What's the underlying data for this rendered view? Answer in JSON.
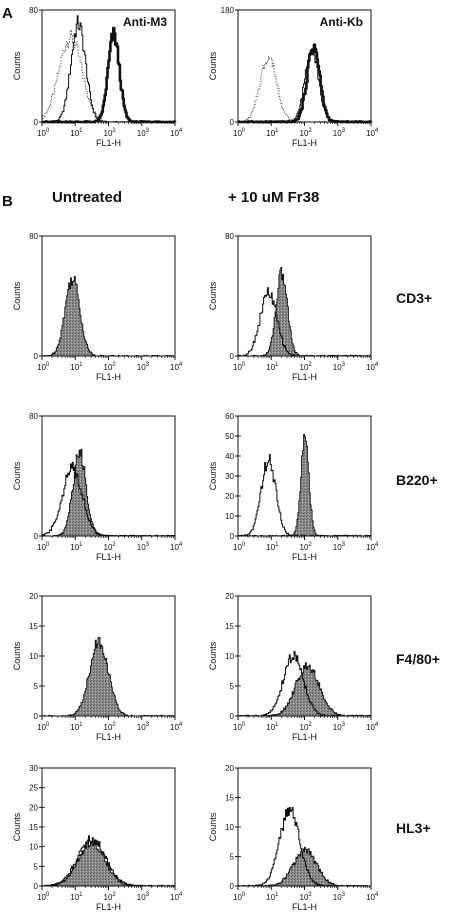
{
  "panel_labels": {
    "a": "A",
    "b": "B"
  },
  "column_headings": {
    "untreated": "Untreated",
    "treated": "+ 10 uM Fr38"
  },
  "row_labels": [
    "CD3+",
    "B220+",
    "F4/80+",
    "HL3+"
  ],
  "colors": {
    "ink": "#111111",
    "filled_histogram": "#8a8a8a",
    "background": "#ffffff"
  },
  "chart_data": [
    {
      "id": "A-left",
      "type": "area",
      "title": "Anti-M3",
      "xlabel": "FL1-H",
      "ylabel": "Counts",
      "x_scale": "log",
      "xlim": [
        1,
        10000
      ],
      "ylim": [
        0,
        80
      ],
      "yticks": [
        0,
        80
      ],
      "series": [
        {
          "style": "dotted",
          "values": [
            {
              "center": 7,
              "width": 0.35,
              "height": 60
            }
          ]
        },
        {
          "style": "thin-line",
          "values": [
            {
              "center": 12,
              "width": 0.22,
              "height": 70
            }
          ]
        },
        {
          "style": "bold-line",
          "values": [
            {
              "center": 140,
              "width": 0.17,
              "height": 62
            }
          ]
        }
      ]
    },
    {
      "id": "A-right",
      "type": "area",
      "title": "Anti-Kb",
      "xlabel": "FL1-H",
      "ylabel": "Counts",
      "x_scale": "log",
      "xlim": [
        1,
        10000
      ],
      "ylim": [
        0,
        180
      ],
      "yticks": [
        0,
        180
      ],
      "series": [
        {
          "style": "dotted",
          "values": [
            {
              "center": 8,
              "width": 0.25,
              "height": 105
            }
          ]
        },
        {
          "style": "thin-line",
          "values": [
            {
              "center": 160,
              "width": 0.2,
              "height": 120
            }
          ]
        },
        {
          "style": "bold-line",
          "values": [
            {
              "center": 180,
              "width": 0.19,
              "height": 122
            }
          ]
        }
      ]
    },
    {
      "id": "CD3-untreated",
      "type": "area",
      "xlabel": "FL1-H",
      "ylabel": "Counts",
      "x_scale": "log",
      "xlim": [
        1,
        10000
      ],
      "ylim": [
        0,
        80
      ],
      "yticks": [
        0,
        80
      ],
      "series": [
        {
          "style": "filled",
          "values": [
            {
              "center": 8,
              "width": 0.22,
              "height": 52
            }
          ]
        }
      ]
    },
    {
      "id": "CD3-treated",
      "type": "area",
      "xlabel": "FL1-H",
      "ylabel": "Counts",
      "x_scale": "log",
      "xlim": [
        1,
        10000
      ],
      "ylim": [
        0,
        80
      ],
      "yticks": [
        0,
        80
      ],
      "series": [
        {
          "style": "filled",
          "values": [
            {
              "center": 20,
              "width": 0.17,
              "height": 55
            }
          ]
        },
        {
          "style": "outline",
          "values": [
            {
              "center": 8,
              "width": 0.25,
              "height": 42
            }
          ]
        }
      ]
    },
    {
      "id": "B220-untreated",
      "type": "area",
      "xlabel": "FL1-H",
      "ylabel": "Counts",
      "x_scale": "log",
      "xlim": [
        1,
        10000
      ],
      "ylim": [
        0,
        80
      ],
      "yticks": [
        0,
        80
      ],
      "series": [
        {
          "style": "filled",
          "values": [
            {
              "center": 13,
              "width": 0.2,
              "height": 55
            }
          ]
        },
        {
          "style": "outline",
          "values": [
            {
              "center": 8,
              "width": 0.3,
              "height": 45
            }
          ]
        }
      ]
    },
    {
      "id": "B220-treated",
      "type": "area",
      "xlabel": "FL1-H",
      "ylabel": "Counts",
      "x_scale": "log",
      "xlim": [
        1,
        10000
      ],
      "ylim": [
        0,
        60
      ],
      "yticks": [
        0,
        10,
        20,
        30,
        40,
        50,
        60
      ],
      "series": [
        {
          "style": "filled",
          "values": [
            {
              "center": 100,
              "width": 0.12,
              "height": 48
            }
          ]
        },
        {
          "style": "outline",
          "values": [
            {
              "center": 8,
              "width": 0.22,
              "height": 38
            }
          ]
        }
      ]
    },
    {
      "id": "F480-untreated",
      "type": "area",
      "xlabel": "FL1-H",
      "ylabel": "Counts",
      "x_scale": "log",
      "xlim": [
        1,
        10000
      ],
      "ylim": [
        0,
        20
      ],
      "yticks": [
        0,
        5,
        10,
        15,
        20
      ],
      "series": [
        {
          "style": "filled",
          "values": [
            {
              "center": 50,
              "width": 0.28,
              "height": 12.5
            }
          ]
        }
      ]
    },
    {
      "id": "F480-treated",
      "type": "area",
      "xlabel": "FL1-H",
      "ylabel": "Counts",
      "x_scale": "log",
      "xlim": [
        1,
        10000
      ],
      "ylim": [
        0,
        20
      ],
      "yticks": [
        0,
        5,
        10,
        15,
        20
      ],
      "series": [
        {
          "style": "filled",
          "values": [
            {
              "center": 120,
              "width": 0.35,
              "height": 8.5
            }
          ]
        },
        {
          "style": "outline",
          "values": [
            {
              "center": 45,
              "width": 0.3,
              "height": 10
            }
          ]
        }
      ]
    },
    {
      "id": "HL3-untreated",
      "type": "area",
      "xlabel": "FL1-H",
      "ylabel": "Counts",
      "x_scale": "log",
      "xlim": [
        1,
        10000
      ],
      "ylim": [
        0,
        30
      ],
      "yticks": [
        0,
        5,
        10,
        15,
        20,
        25,
        30
      ],
      "series": [
        {
          "style": "filled",
          "values": [
            {
              "center": 30,
              "width": 0.4,
              "height": 11
            }
          ]
        },
        {
          "style": "outline",
          "values": [
            {
              "center": 30,
              "width": 0.42,
              "height": 12
            }
          ]
        }
      ]
    },
    {
      "id": "HL3-treated",
      "type": "area",
      "xlabel": "FL1-H",
      "ylabel": "Counts",
      "x_scale": "log",
      "xlim": [
        1,
        10000
      ],
      "ylim": [
        0,
        20
      ],
      "yticks": [
        0,
        5,
        10,
        15,
        20
      ],
      "series": [
        {
          "style": "filled",
          "values": [
            {
              "center": 100,
              "width": 0.35,
              "height": 6
            }
          ]
        },
        {
          "style": "outline",
          "values": [
            {
              "center": 35,
              "width": 0.3,
              "height": 13
            }
          ]
        }
      ]
    }
  ]
}
